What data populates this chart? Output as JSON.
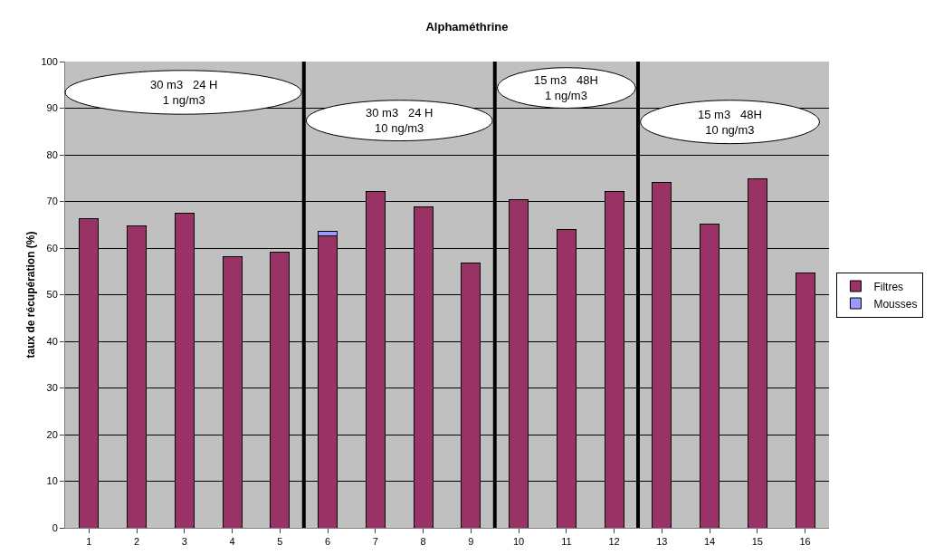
{
  "chart_data": {
    "type": "bar",
    "title": "Alphaméthrine",
    "ylabel": "taux de récupération (%)",
    "x": [
      1,
      2,
      3,
      4,
      5,
      6,
      7,
      8,
      9,
      10,
      11,
      12,
      13,
      14,
      15,
      16
    ],
    "xlim": [
      0.5,
      16.5
    ],
    "xticks": [
      1,
      2,
      3,
      4,
      5,
      6,
      7,
      8,
      9,
      10,
      11,
      12,
      13,
      14,
      15,
      16
    ],
    "ylim": [
      0,
      100
    ],
    "yticks": [
      0,
      10,
      20,
      30,
      40,
      50,
      60,
      70,
      80,
      90,
      100
    ],
    "stacked": true,
    "grid": "y",
    "legend": "right",
    "series": [
      {
        "name": "Filtres",
        "color": "#993366",
        "values": [
          66.4,
          64.7,
          67.5,
          58.2,
          59.2,
          62.7,
          72.2,
          68.8,
          56.7,
          70.3,
          64.0,
          72.1,
          74.0,
          65.2,
          74.9,
          54.7
        ]
      },
      {
        "name": "Mousses",
        "color": "#9999ff",
        "values": [
          null,
          null,
          null,
          null,
          null,
          0.9,
          null,
          null,
          null,
          null,
          null,
          null,
          null,
          null,
          null,
          null
        ]
      }
    ],
    "ref_lines": [
      {
        "axis": "x",
        "value": 5.5,
        "color": "#000000"
      },
      {
        "axis": "x",
        "value": 9.5,
        "color": "#000000"
      },
      {
        "axis": "x",
        "value": 12.5,
        "color": "#000000"
      }
    ],
    "annotations": [
      "30 m3   24 H\n1 ng/m3",
      "30 m3   24 H\n10 ng/m3",
      "15 m3   48H\n1 ng/m3",
      "15 m3   48H\n10 ng/m3"
    ]
  }
}
